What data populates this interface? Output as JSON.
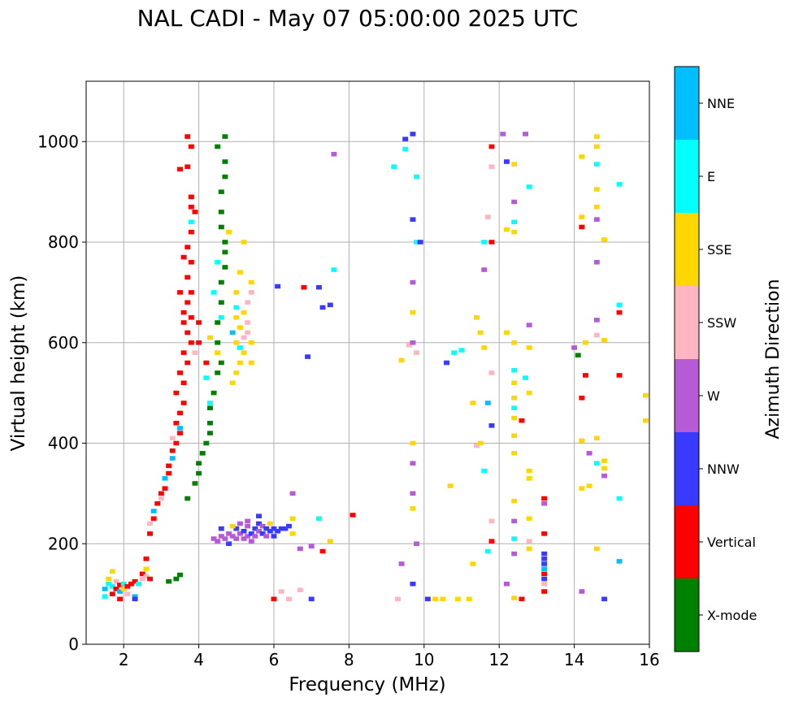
{
  "chart_data": {
    "type": "scatter",
    "title": "NAL CADI - May 07 05:00:00 2025 UTC",
    "xlabel": "Frequency (MHz)",
    "ylabel": "Virtual height (km)",
    "xlim": [
      1,
      16
    ],
    "ylim": [
      0,
      1120
    ],
    "xticks": [
      2,
      4,
      6,
      8,
      10,
      12,
      14,
      16
    ],
    "yticks": [
      0,
      200,
      400,
      600,
      800,
      1000
    ],
    "grid": true,
    "colorbar": {
      "label": "Azimuth Direction",
      "categories": [
        "X-mode",
        "Vertical",
        "NNW",
        "W",
        "SSW",
        "SSE",
        "E",
        "NNE"
      ],
      "colors": [
        "#008000",
        "#ff0000",
        "#3a3aff",
        "#b65ad6",
        "#ffb6c1",
        "#ffd700",
        "#00ffff",
        "#00bfff"
      ]
    },
    "points_format": [
      "frequency_mhz",
      "height_km",
      "category_index"
    ],
    "points": [
      [
        1.5,
        95,
        6
      ],
      [
        1.5,
        110,
        7
      ],
      [
        1.6,
        120,
        6
      ],
      [
        1.6,
        130,
        5
      ],
      [
        1.7,
        100,
        1
      ],
      [
        1.7,
        115,
        6
      ],
      [
        1.8,
        110,
        1
      ],
      [
        1.8,
        125,
        4
      ],
      [
        1.9,
        105,
        7
      ],
      [
        1.9,
        118,
        1
      ],
      [
        2.0,
        110,
        5
      ],
      [
        2.0,
        120,
        6
      ],
      [
        2.1,
        115,
        1
      ],
      [
        2.1,
        100,
        4
      ],
      [
        2.2,
        120,
        1
      ],
      [
        2.3,
        125,
        1
      ],
      [
        2.4,
        120,
        6
      ],
      [
        2.5,
        130,
        4
      ],
      [
        2.5,
        140,
        1
      ],
      [
        2.6,
        150,
        5
      ],
      [
        2.6,
        135,
        4
      ],
      [
        2.6,
        170,
        1
      ],
      [
        2.7,
        130,
        1
      ],
      [
        1.7,
        145,
        5
      ],
      [
        1.9,
        90,
        1
      ],
      [
        2.3,
        95,
        7
      ],
      [
        2.3,
        90,
        2
      ],
      [
        3.2,
        125,
        0
      ],
      [
        3.4,
        130,
        0
      ],
      [
        3.5,
        138,
        0
      ],
      [
        2.7,
        220,
        1
      ],
      [
        2.7,
        240,
        4
      ],
      [
        2.8,
        250,
        1
      ],
      [
        2.8,
        265,
        7
      ],
      [
        2.9,
        280,
        1
      ],
      [
        3.0,
        300,
        1
      ],
      [
        3.0,
        290,
        4
      ],
      [
        3.1,
        310,
        1
      ],
      [
        3.1,
        330,
        7
      ],
      [
        3.2,
        340,
        1
      ],
      [
        3.2,
        355,
        1
      ],
      [
        3.3,
        370,
        7
      ],
      [
        3.3,
        385,
        1
      ],
      [
        3.4,
        400,
        1
      ],
      [
        3.3,
        410,
        4
      ],
      [
        3.5,
        420,
        1
      ],
      [
        3.4,
        440,
        1
      ],
      [
        3.5,
        460,
        1
      ],
      [
        3.5,
        430,
        7
      ],
      [
        3.6,
        480,
        1
      ],
      [
        3.4,
        500,
        1
      ],
      [
        3.6,
        520,
        1
      ],
      [
        3.5,
        540,
        1
      ],
      [
        3.7,
        560,
        1
      ],
      [
        3.6,
        580,
        1
      ],
      [
        3.8,
        600,
        1
      ],
      [
        3.7,
        620,
        1
      ],
      [
        3.6,
        640,
        1
      ],
      [
        3.8,
        650,
        1
      ],
      [
        3.6,
        660,
        1
      ],
      [
        3.7,
        680,
        1
      ],
      [
        3.8,
        700,
        1
      ],
      [
        3.5,
        700,
        1
      ],
      [
        3.7,
        730,
        1
      ],
      [
        3.8,
        760,
        1
      ],
      [
        3.7,
        790,
        1
      ],
      [
        3.8,
        820,
        1
      ],
      [
        3.8,
        840,
        6
      ],
      [
        3.9,
        860,
        1
      ],
      [
        3.8,
        870,
        1
      ],
      [
        3.8,
        890,
        1
      ],
      [
        3.7,
        950,
        1
      ],
      [
        3.5,
        945,
        1
      ],
      [
        3.8,
        990,
        1
      ],
      [
        3.7,
        1010,
        1
      ],
      [
        3.6,
        770,
        1
      ],
      [
        4.0,
        640,
        1
      ],
      [
        4.0,
        600,
        1
      ],
      [
        4.2,
        560,
        1
      ],
      [
        3.9,
        580,
        4
      ],
      [
        3.7,
        290,
        0
      ],
      [
        3.9,
        320,
        0
      ],
      [
        4.0,
        340,
        0
      ],
      [
        4.0,
        360,
        0
      ],
      [
        4.1,
        380,
        0
      ],
      [
        4.2,
        400,
        0
      ],
      [
        4.3,
        420,
        0
      ],
      [
        4.3,
        440,
        0
      ],
      [
        4.3,
        470,
        0
      ],
      [
        4.4,
        500,
        0
      ],
      [
        4.5,
        540,
        0
      ],
      [
        4.6,
        560,
        0
      ],
      [
        4.5,
        600,
        0
      ],
      [
        4.5,
        640,
        0
      ],
      [
        4.6,
        680,
        0
      ],
      [
        4.6,
        720,
        0
      ],
      [
        4.7,
        750,
        0
      ],
      [
        4.7,
        780,
        0
      ],
      [
        4.7,
        800,
        0
      ],
      [
        4.6,
        830,
        0
      ],
      [
        4.6,
        860,
        0
      ],
      [
        4.6,
        900,
        0
      ],
      [
        4.7,
        930,
        0
      ],
      [
        4.7,
        960,
        0
      ],
      [
        4.7,
        1010,
        0
      ],
      [
        4.3,
        480,
        6
      ],
      [
        4.2,
        530,
        6
      ],
      [
        4.5,
        580,
        5
      ],
      [
        4.3,
        610,
        5
      ],
      [
        4.6,
        650,
        6
      ],
      [
        4.4,
        700,
        6
      ],
      [
        4.5,
        760,
        6
      ],
      [
        4.8,
        820,
        5
      ],
      [
        4.5,
        990,
        0
      ],
      [
        4.9,
        520,
        5
      ],
      [
        5.0,
        540,
        5
      ],
      [
        5.1,
        560,
        5
      ],
      [
        5.2,
        580,
        5
      ],
      [
        5.0,
        600,
        5
      ],
      [
        5.2,
        610,
        4
      ],
      [
        5.3,
        620,
        4
      ],
      [
        5.1,
        630,
        5
      ],
      [
        5.0,
        650,
        5
      ],
      [
        5.3,
        640,
        4
      ],
      [
        5.2,
        660,
        5
      ],
      [
        5.3,
        680,
        4
      ],
      [
        5.4,
        700,
        4
      ],
      [
        5.4,
        720,
        5
      ],
      [
        5.0,
        670,
        6
      ],
      [
        5.1,
        590,
        6
      ],
      [
        4.9,
        620,
        7
      ],
      [
        5.1,
        740,
        5
      ],
      [
        5.2,
        800,
        5
      ],
      [
        5.0,
        700,
        5
      ],
      [
        5.4,
        560,
        5
      ],
      [
        5.4,
        600,
        5
      ],
      [
        4.4,
        210,
        3
      ],
      [
        4.5,
        205,
        3
      ],
      [
        4.6,
        215,
        3
      ],
      [
        4.6,
        230,
        2
      ],
      [
        4.7,
        210,
        3
      ],
      [
        4.8,
        220,
        3
      ],
      [
        4.8,
        200,
        2
      ],
      [
        4.9,
        215,
        3
      ],
      [
        5.0,
        210,
        3
      ],
      [
        5.0,
        230,
        2
      ],
      [
        5.1,
        220,
        3
      ],
      [
        5.1,
        240,
        3
      ],
      [
        5.2,
        210,
        3
      ],
      [
        5.2,
        225,
        2
      ],
      [
        5.3,
        215,
        3
      ],
      [
        5.3,
        235,
        3
      ],
      [
        5.4,
        220,
        2
      ],
      [
        5.4,
        205,
        3
      ],
      [
        5.5,
        230,
        2
      ],
      [
        5.5,
        215,
        3
      ],
      [
        5.6,
        225,
        3
      ],
      [
        5.6,
        240,
        2
      ],
      [
        5.7,
        220,
        2
      ],
      [
        5.7,
        235,
        3
      ],
      [
        5.8,
        230,
        2
      ],
      [
        5.8,
        215,
        3
      ],
      [
        5.9,
        225,
        2
      ],
      [
        5.9,
        240,
        5
      ],
      [
        6.0,
        230,
        2
      ],
      [
        6.0,
        215,
        2
      ],
      [
        6.1,
        225,
        2
      ],
      [
        6.2,
        230,
        2
      ],
      [
        6.3,
        230,
        2
      ],
      [
        6.4,
        235,
        2
      ],
      [
        6.5,
        220,
        5
      ],
      [
        6.5,
        250,
        5
      ],
      [
        5.6,
        255,
        2
      ],
      [
        5.3,
        245,
        3
      ],
      [
        4.9,
        235,
        5
      ],
      [
        6.0,
        90,
        1
      ],
      [
        6.2,
        105,
        4
      ],
      [
        6.4,
        90,
        4
      ],
      [
        6.7,
        108,
        4
      ],
      [
        7.0,
        90,
        2
      ],
      [
        6.5,
        300,
        3
      ],
      [
        6.8,
        710,
        1
      ],
      [
        7.2,
        710,
        2
      ],
      [
        7.3,
        670,
        2
      ],
      [
        7.5,
        675,
        2
      ],
      [
        7.6,
        745,
        6
      ],
      [
        7.6,
        975,
        3
      ],
      [
        6.1,
        712,
        2
      ],
      [
        6.9,
        572,
        2
      ],
      [
        7.2,
        250,
        6
      ],
      [
        6.7,
        190,
        3
      ],
      [
        7.0,
        195,
        3
      ],
      [
        7.3,
        185,
        1
      ],
      [
        7.5,
        205,
        5
      ],
      [
        8.1,
        257,
        1
      ],
      [
        9.3,
        90,
        4
      ],
      [
        9.4,
        160,
        3
      ],
      [
        9.5,
        1005,
        2
      ],
      [
        9.5,
        985,
        6
      ],
      [
        9.2,
        950,
        6
      ],
      [
        9.4,
        565,
        5
      ],
      [
        9.6,
        595,
        4
      ],
      [
        9.7,
        1015,
        2
      ],
      [
        9.7,
        845,
        2
      ],
      [
        9.7,
        720,
        3
      ],
      [
        9.7,
        660,
        5
      ],
      [
        9.7,
        600,
        3
      ],
      [
        9.8,
        580,
        4
      ],
      [
        9.8,
        930,
        6
      ],
      [
        9.8,
        800,
        6
      ],
      [
        9.9,
        800,
        2
      ],
      [
        9.7,
        400,
        5
      ],
      [
        9.7,
        360,
        3
      ],
      [
        9.7,
        300,
        3
      ],
      [
        9.7,
        270,
        5
      ],
      [
        9.8,
        200,
        3
      ],
      [
        9.7,
        120,
        2
      ],
      [
        10.1,
        90,
        2
      ],
      [
        10.3,
        90,
        5
      ],
      [
        10.5,
        90,
        5
      ],
      [
        10.6,
        560,
        2
      ],
      [
        10.7,
        315,
        5
      ],
      [
        10.8,
        580,
        6
      ],
      [
        10.9,
        90,
        5
      ],
      [
        11.0,
        585,
        6
      ],
      [
        11.2,
        90,
        5
      ],
      [
        11.3,
        160,
        5
      ],
      [
        11.3,
        480,
        5
      ],
      [
        11.4,
        395,
        4
      ],
      [
        11.5,
        400,
        5
      ],
      [
        11.4,
        650,
        5
      ],
      [
        11.5,
        620,
        5
      ],
      [
        11.6,
        590,
        5
      ],
      [
        11.6,
        745,
        3
      ],
      [
        11.7,
        850,
        4
      ],
      [
        11.6,
        800,
        6
      ],
      [
        11.7,
        480,
        7
      ],
      [
        11.6,
        345,
        6
      ],
      [
        11.7,
        185,
        6
      ],
      [
        11.8,
        990,
        1
      ],
      [
        11.8,
        950,
        4
      ],
      [
        11.8,
        800,
        1
      ],
      [
        11.8,
        540,
        4
      ],
      [
        11.8,
        435,
        2
      ],
      [
        11.8,
        245,
        4
      ],
      [
        11.8,
        205,
        1
      ],
      [
        12.1,
        1015,
        3
      ],
      [
        12.2,
        960,
        2
      ],
      [
        12.4,
        955,
        5
      ],
      [
        12.2,
        825,
        5
      ],
      [
        12.4,
        880,
        3
      ],
      [
        12.4,
        840,
        6
      ],
      [
        12.4,
        820,
        5
      ],
      [
        12.2,
        620,
        5
      ],
      [
        12.4,
        600,
        5
      ],
      [
        12.4,
        545,
        6
      ],
      [
        12.4,
        520,
        5
      ],
      [
        12.4,
        490,
        5
      ],
      [
        12.4,
        470,
        6
      ],
      [
        12.4,
        450,
        5
      ],
      [
        12.4,
        415,
        5
      ],
      [
        12.4,
        380,
        5
      ],
      [
        12.4,
        285,
        5
      ],
      [
        12.4,
        245,
        3
      ],
      [
        12.4,
        210,
        6
      ],
      [
        12.4,
        180,
        3
      ],
      [
        12.2,
        120,
        3
      ],
      [
        12.4,
        92,
        5
      ],
      [
        12.6,
        90,
        1
      ],
      [
        12.7,
        1015,
        3
      ],
      [
        12.8,
        910,
        6
      ],
      [
        12.8,
        635,
        3
      ],
      [
        12.8,
        590,
        5
      ],
      [
        12.7,
        530,
        6
      ],
      [
        12.8,
        500,
        5
      ],
      [
        12.6,
        445,
        1
      ],
      [
        12.8,
        345,
        5
      ],
      [
        12.8,
        330,
        5
      ],
      [
        12.8,
        250,
        5
      ],
      [
        12.8,
        205,
        4
      ],
      [
        12.8,
        190,
        5
      ],
      [
        13.2,
        290,
        1
      ],
      [
        13.2,
        280,
        3
      ],
      [
        13.2,
        220,
        1
      ],
      [
        13.2,
        180,
        2
      ],
      [
        13.2,
        170,
        2
      ],
      [
        13.2,
        160,
        2
      ],
      [
        13.2,
        150,
        7
      ],
      [
        13.2,
        140,
        1
      ],
      [
        13.2,
        130,
        2
      ],
      [
        13.2,
        120,
        4
      ],
      [
        13.2,
        105,
        1
      ],
      [
        14.0,
        590,
        3
      ],
      [
        14.1,
        575,
        0
      ],
      [
        14.2,
        970,
        5
      ],
      [
        14.2,
        850,
        5
      ],
      [
        14.2,
        830,
        1
      ],
      [
        14.2,
        490,
        1
      ],
      [
        14.2,
        405,
        5
      ],
      [
        14.2,
        310,
        5
      ],
      [
        14.2,
        105,
        3
      ],
      [
        14.3,
        600,
        5
      ],
      [
        14.3,
        535,
        1
      ],
      [
        14.4,
        380,
        3
      ],
      [
        14.4,
        315,
        5
      ],
      [
        14.6,
        1010,
        5
      ],
      [
        14.6,
        990,
        5
      ],
      [
        14.6,
        955,
        6
      ],
      [
        14.6,
        905,
        5
      ],
      [
        14.6,
        870,
        5
      ],
      [
        14.6,
        845,
        3
      ],
      [
        14.6,
        760,
        3
      ],
      [
        14.6,
        645,
        3
      ],
      [
        14.6,
        615,
        4
      ],
      [
        14.6,
        410,
        5
      ],
      [
        14.6,
        360,
        6
      ],
      [
        14.6,
        190,
        5
      ],
      [
        14.8,
        805,
        5
      ],
      [
        14.8,
        605,
        5
      ],
      [
        14.8,
        365,
        5
      ],
      [
        14.8,
        350,
        5
      ],
      [
        14.8,
        335,
        3
      ],
      [
        14.8,
        90,
        2
      ],
      [
        15.2,
        915,
        6
      ],
      [
        15.2,
        675,
        6
      ],
      [
        15.2,
        660,
        1
      ],
      [
        15.2,
        535,
        1
      ],
      [
        15.2,
        290,
        6
      ],
      [
        15.2,
        165,
        7
      ],
      [
        15.9,
        495,
        5
      ],
      [
        15.9,
        445,
        5
      ]
    ]
  }
}
